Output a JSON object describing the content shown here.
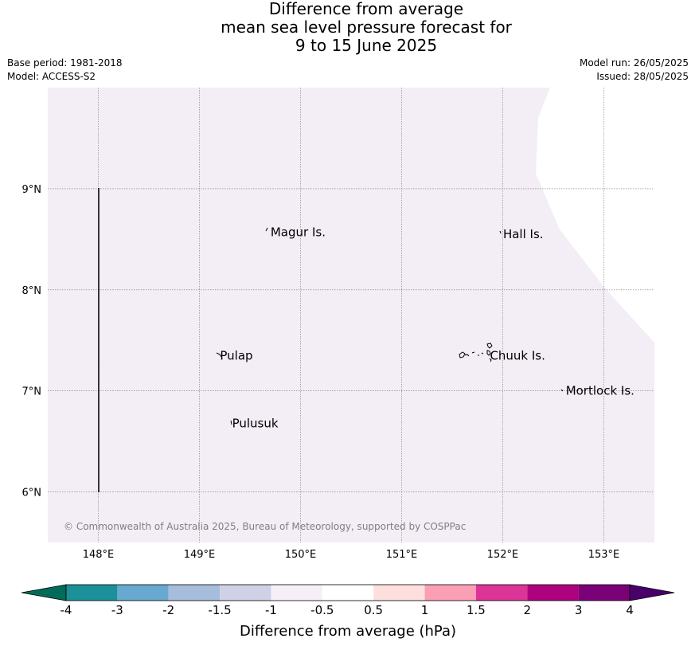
{
  "title": {
    "line1": "Difference from average",
    "line2": "mean sea level pressure forecast for",
    "line3": "9 to 15 June 2025"
  },
  "meta": {
    "base_period": "Base period: 1981-2018",
    "model": "Model: ACCESS-S2",
    "model_run": "Model run: 26/05/2025",
    "issued": "Issued: 28/05/2025"
  },
  "map": {
    "longitude_ticks": [
      {
        "value": 148,
        "label": "148°E"
      },
      {
        "value": 149,
        "label": "149°E"
      },
      {
        "value": 150,
        "label": "150°E"
      },
      {
        "value": 151,
        "label": "151°E"
      },
      {
        "value": 152,
        "label": "152°E"
      },
      {
        "value": 153,
        "label": "153°E"
      }
    ],
    "latitude_ticks": [
      {
        "value": 9,
        "label": "9°N"
      },
      {
        "value": 8,
        "label": "8°N"
      },
      {
        "value": 7,
        "label": "7°N"
      },
      {
        "value": 6,
        "label": "6°N"
      }
    ],
    "extent": {
      "lon_min": 147.5,
      "lon_max": 153.5,
      "lat_min": 5.5,
      "lat_max": 10.0
    },
    "fill_color": "#f3edf5",
    "fill_category": "-1 to -0.5",
    "places": [
      {
        "name": "Magur Is.",
        "lon": 149.68,
        "lat": 8.57
      },
      {
        "name": "Hall Is.",
        "lon": 151.98,
        "lat": 8.55
      },
      {
        "name": "Pulap",
        "lon": 149.18,
        "lat": 7.35
      },
      {
        "name": "Chuuk Is.",
        "lon": 151.85,
        "lat": 7.35
      },
      {
        "name": "Mortlock Is.",
        "lon": 152.6,
        "lat": 7.0
      },
      {
        "name": "Pulusuk",
        "lon": 149.3,
        "lat": 6.68
      }
    ],
    "copyright": "© Commonwealth of Australia 2025, Bureau of Meteorology, supported by COSPPac"
  },
  "colorbar": {
    "title": "Difference from average (hPa)",
    "tick_labels": [
      "-4",
      "-3",
      "-2",
      "-1.5",
      "-1",
      "-0.5",
      "0.5",
      "1",
      "1.5",
      "2",
      "3",
      "4"
    ],
    "under_color": "#016c59",
    "over_color": "#49006a",
    "colors": [
      "#1c9099",
      "#67a9cf",
      "#a6bddb",
      "#d0d1e6",
      "#f6eff7",
      "#ffffff",
      "#fde0dd",
      "#fa9fb5",
      "#dd3497",
      "#ae017e",
      "#7a0177"
    ]
  }
}
